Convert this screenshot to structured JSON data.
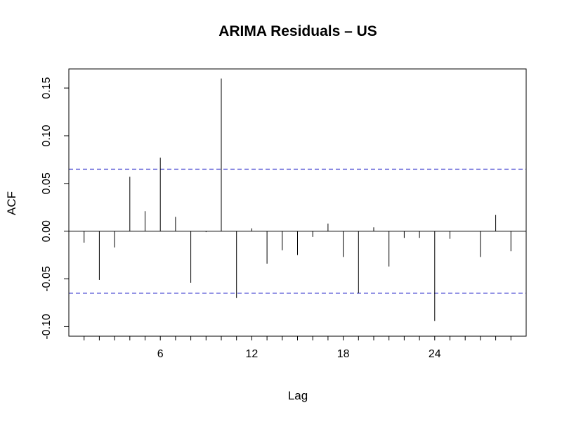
{
  "chart_data": {
    "type": "bar",
    "title": "ARIMA Residuals – US",
    "xlabel": "Lag",
    "ylabel": "ACF",
    "x_tick_labels": [
      "6",
      "12",
      "18",
      "24"
    ],
    "x_tick_values": [
      6,
      12,
      18,
      24
    ],
    "y_tick_labels": [
      "-0.10",
      "-0.05",
      "0.00",
      "0.05",
      "0.10",
      "0.15"
    ],
    "y_tick_values": [
      -0.1,
      -0.05,
      0.0,
      0.05,
      0.1,
      0.15
    ],
    "xlim": [
      0,
      30
    ],
    "ylim": [
      -0.11,
      0.17
    ],
    "confidence_bound": 0.065,
    "lags": [
      1,
      2,
      3,
      4,
      5,
      6,
      7,
      8,
      9,
      10,
      11,
      12,
      13,
      14,
      15,
      16,
      17,
      18,
      19,
      20,
      21,
      22,
      23,
      24,
      25,
      26,
      27,
      28,
      29
    ],
    "values": [
      -0.012,
      -0.051,
      -0.017,
      0.057,
      0.021,
      0.077,
      0.015,
      -0.054,
      -0.001,
      0.16,
      -0.07,
      0.003,
      -0.034,
      -0.02,
      -0.025,
      -0.006,
      0.008,
      -0.027,
      -0.065,
      0.004,
      -0.037,
      -0.007,
      -0.007,
      -0.094,
      -0.008,
      0.0,
      -0.027,
      0.017,
      -0.021
    ],
    "colors": {
      "bars": "#000000",
      "bounds": "#3333cc",
      "frame": "#000000"
    }
  }
}
